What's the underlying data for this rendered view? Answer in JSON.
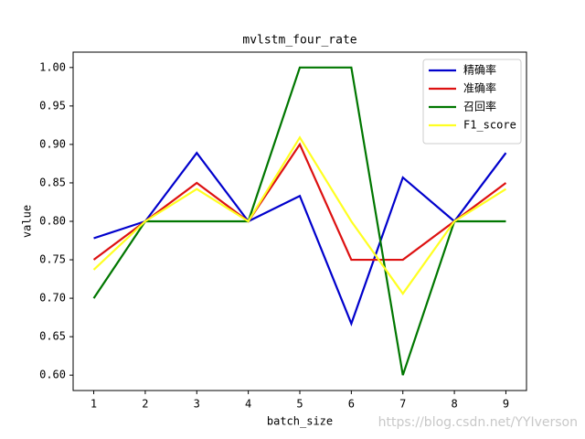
{
  "chart_data": {
    "type": "line",
    "title": "mvlstm_four_rate",
    "xlabel": "batch_size",
    "ylabel": "value",
    "x": [
      1,
      2,
      3,
      4,
      5,
      6,
      7,
      8,
      9
    ],
    "series": [
      {
        "name": "精确率",
        "color": "#0000cc",
        "values": [
          0.778,
          0.8,
          0.889,
          0.8,
          0.833,
          0.667,
          0.857,
          0.8,
          0.889
        ]
      },
      {
        "name": "准确率",
        "color": "#dd1111",
        "values": [
          0.75,
          0.8,
          0.85,
          0.8,
          0.9,
          0.75,
          0.75,
          0.8,
          0.85
        ]
      },
      {
        "name": "召回率",
        "color": "#007700",
        "values": [
          0.7,
          0.8,
          0.8,
          0.8,
          1.0,
          1.0,
          0.6,
          0.8,
          0.8
        ]
      },
      {
        "name": "F1_score",
        "color": "#ffff22",
        "values": [
          0.737,
          0.8,
          0.842,
          0.8,
          0.909,
          0.8,
          0.706,
          0.8,
          0.842
        ]
      }
    ],
    "xlim": [
      0.6,
      9.4
    ],
    "xticks": [
      1,
      2,
      3,
      4,
      5,
      6,
      7,
      8,
      9
    ],
    "ylim": [
      0.58,
      1.02
    ],
    "yticks": [
      {
        "value": 0.6,
        "label": "0.60"
      },
      {
        "value": 0.65,
        "label": "0.65"
      },
      {
        "value": 0.7,
        "label": "0.70"
      },
      {
        "value": 0.75,
        "label": "0.75"
      },
      {
        "value": 0.8,
        "label": "0.80"
      },
      {
        "value": 0.85,
        "label": "0.85"
      },
      {
        "value": 0.9,
        "label": "0.90"
      },
      {
        "value": 0.95,
        "label": "0.95"
      },
      {
        "value": 1.0,
        "label": "1.00"
      }
    ],
    "legend": "upper right",
    "grid": false,
    "watermark": "https://blog.csdn.net/YYIverson"
  }
}
